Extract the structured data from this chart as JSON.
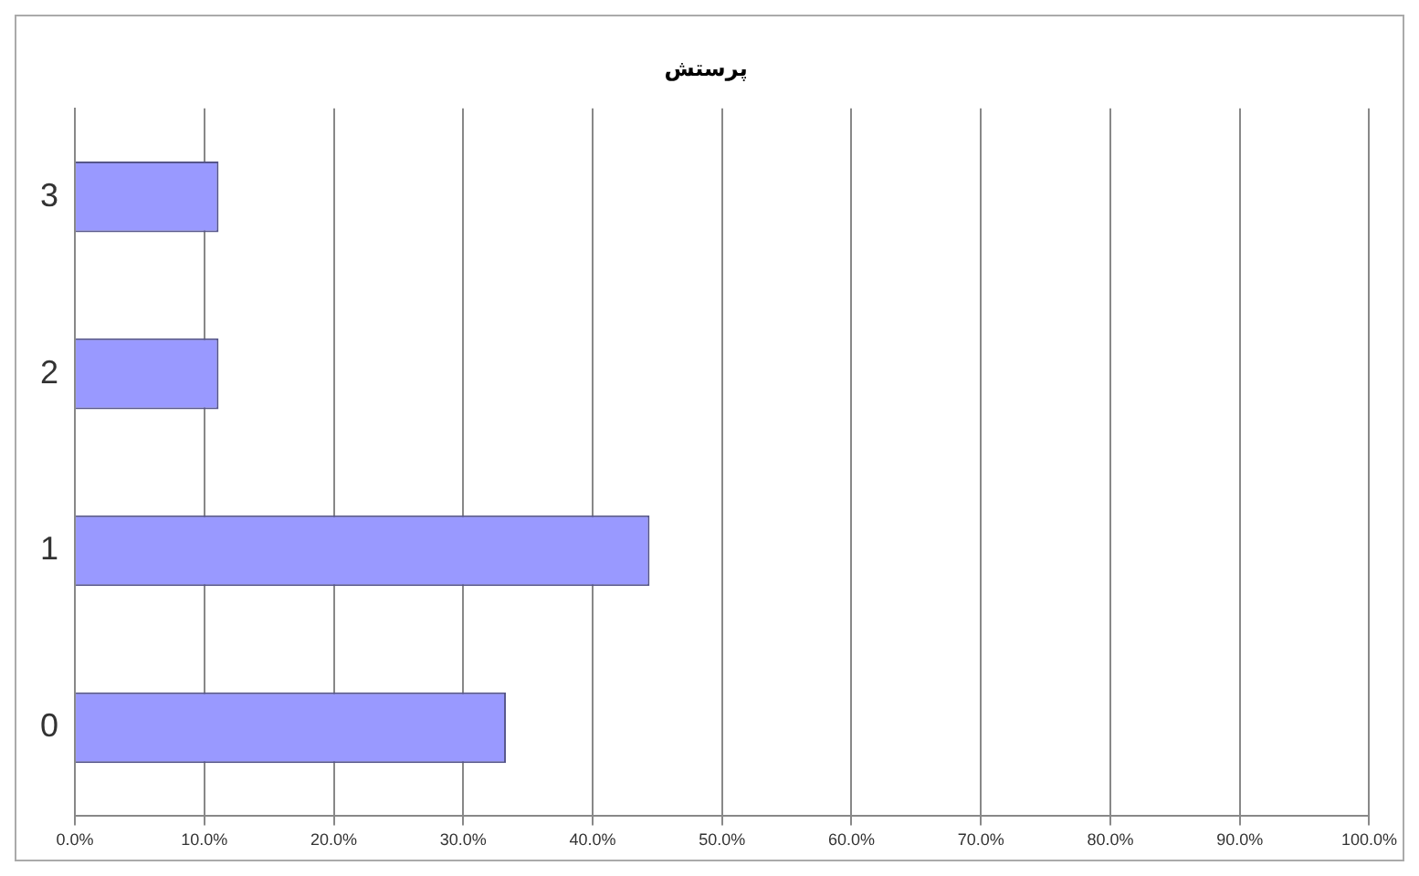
{
  "chart_data": {
    "type": "bar",
    "orientation": "horizontal",
    "title": "پرستش",
    "categories": [
      "3",
      "2",
      "1",
      "0"
    ],
    "values": [
      11.1,
      11.1,
      44.4,
      33.3
    ],
    "color": "#9999ff",
    "xlim": [
      0,
      100
    ],
    "xticks": [
      {
        "value": 0,
        "label": "0.0%"
      },
      {
        "value": 10,
        "label": "10.0%"
      },
      {
        "value": 20,
        "label": "20.0%"
      },
      {
        "value": 30,
        "label": "30.0%"
      },
      {
        "value": 40,
        "label": "40.0%"
      },
      {
        "value": 50,
        "label": "50.0%"
      },
      {
        "value": 60,
        "label": "60.0%"
      },
      {
        "value": 70,
        "label": "70.0%"
      },
      {
        "value": 80,
        "label": "80.0%"
      },
      {
        "value": 90,
        "label": "90.0%"
      },
      {
        "value": 100,
        "label": "100.0%"
      }
    ],
    "grid": "x",
    "legend": false
  }
}
